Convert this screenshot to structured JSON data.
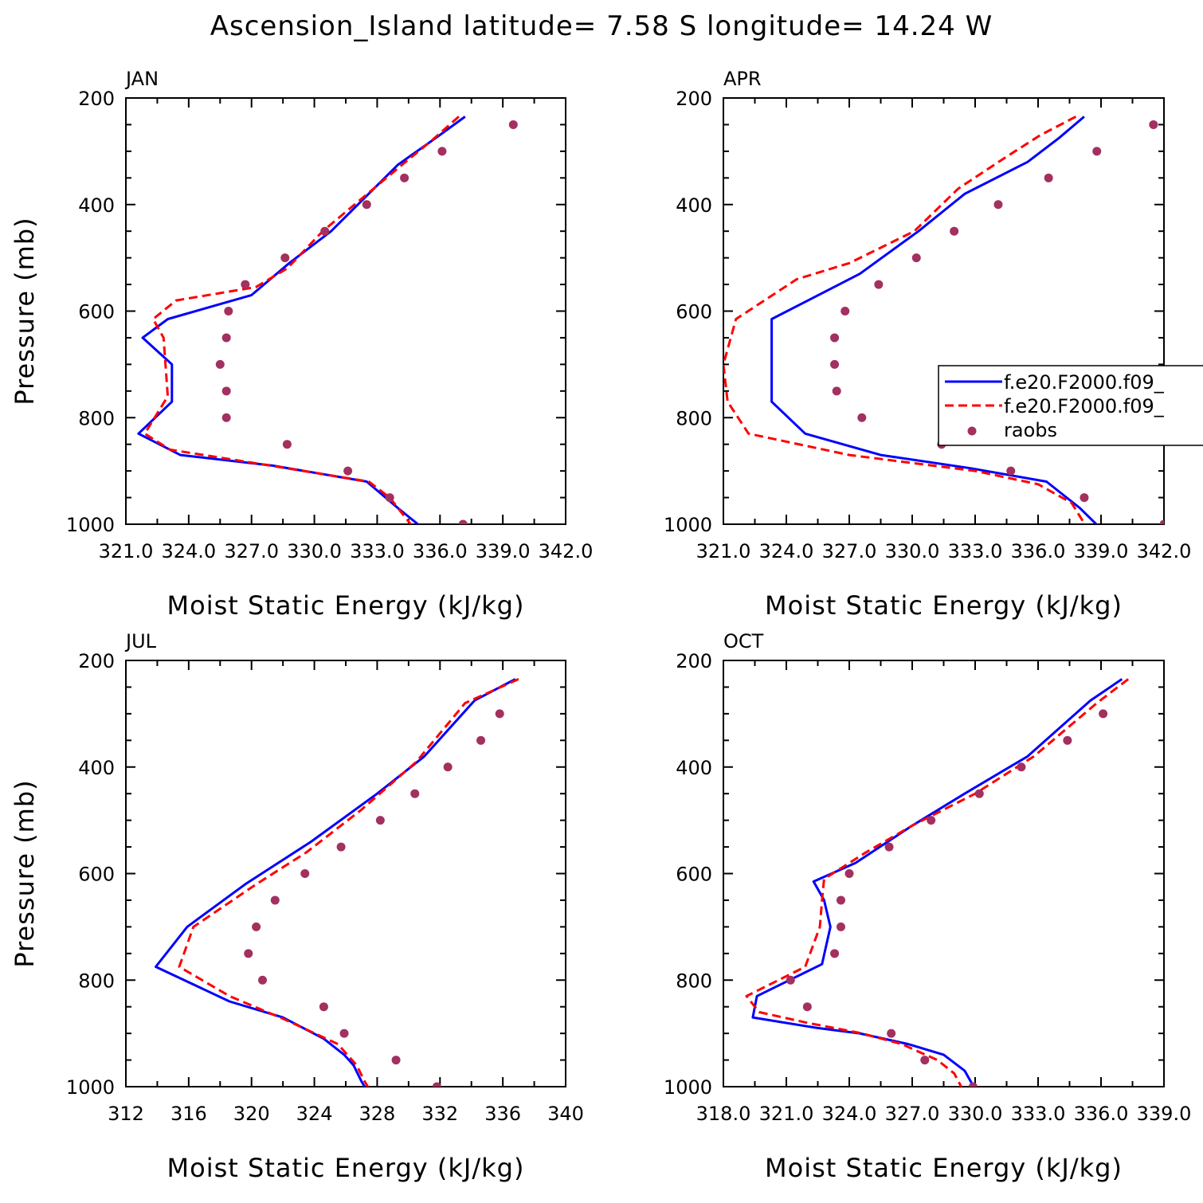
{
  "title": "Ascension_Island  latitude= 7.58 S longitude= 14.24 W",
  "colors": {
    "model1": "#0000ff",
    "model2": "#ff0000",
    "raobs": "#a3305f",
    "frame": "#000000"
  },
  "legend": {
    "placement": "inside APR panel, right side",
    "entries": [
      {
        "label": "f.e20.F2000.f09_",
        "style": "solid-line",
        "color": "#0000ff"
      },
      {
        "label": "f.e20.F2000.f09_",
        "style": "dashed-line",
        "color": "#ff0000"
      },
      {
        "label": "raobs",
        "style": "marker",
        "color": "#a3305f"
      }
    ]
  },
  "chart_data": [
    {
      "type": "line",
      "panel": "JAN",
      "xlabel": "Moist Static Energy (kJ/kg)",
      "ylabel": "Pressure (mb)",
      "xlim": [
        321,
        342
      ],
      "ylim": [
        200,
        1000
      ],
      "y_inverted": true,
      "xticks": [
        321,
        324,
        327,
        330,
        333,
        336,
        339,
        342
      ],
      "xticklabels": [
        "321.0",
        "324.0",
        "327.0",
        "330.0",
        "333.0",
        "336.0",
        "339.0",
        "342.0"
      ],
      "yticks": [
        200,
        400,
        600,
        800,
        1000
      ],
      "yticklabels": [
        "200",
        "400",
        "600",
        "800",
        "1000"
      ],
      "series": [
        {
          "style": "solid",
          "color": "#0000ff",
          "x": [
            337.2,
            335.8,
            334.0,
            330.8,
            328.8,
            327.0,
            323.0,
            321.8,
            323.2,
            323.2,
            321.6,
            323.6,
            328.0,
            332.5,
            334.0,
            335.1
          ],
          "y": [
            235,
            275,
            325,
            450,
            510,
            570,
            615,
            650,
            700,
            770,
            830,
            870,
            890,
            920,
            970,
            1005
          ]
        },
        {
          "style": "dashed",
          "color": "#ff0000",
          "x": [
            336.9,
            335.6,
            334.2,
            330.4,
            328.7,
            327.2,
            323.4,
            322.3,
            322.8,
            323.0,
            321.9,
            323.1,
            327.9,
            332.6,
            333.6,
            334.7
          ],
          "y": [
            235,
            280,
            325,
            450,
            520,
            555,
            580,
            615,
            650,
            760,
            830,
            860,
            890,
            920,
            950,
            1005
          ]
        },
        {
          "style": "marker",
          "color": "#a3305f",
          "x": [
            339.5,
            336.1,
            334.3,
            332.5,
            330.5,
            328.6,
            326.7,
            325.9,
            325.8,
            325.5,
            325.8,
            325.8,
            328.7,
            331.6,
            333.6,
            337.1
          ],
          "y": [
            250,
            300,
            350,
            400,
            450,
            500,
            550,
            600,
            650,
            700,
            750,
            800,
            850,
            900,
            950,
            1000
          ]
        }
      ]
    },
    {
      "type": "line",
      "panel": "APR",
      "xlabel": "Moist Static Energy (kJ/kg)",
      "ylabel": "",
      "xlim": [
        321,
        342
      ],
      "ylim": [
        200,
        1000
      ],
      "y_inverted": true,
      "xticks": [
        321,
        324,
        327,
        330,
        333,
        336,
        339,
        342
      ],
      "xticklabels": [
        "321.0",
        "324.0",
        "327.0",
        "330.0",
        "333.0",
        "336.0",
        "339.0",
        "342.0"
      ],
      "yticks": [
        200,
        400,
        600,
        800,
        1000
      ],
      "yticklabels": [
        "200",
        "400",
        "600",
        "800",
        "1000"
      ],
      "series": [
        {
          "style": "solid",
          "color": "#0000ff",
          "x": [
            338.2,
            337.0,
            335.5,
            332.5,
            330.3,
            327.5,
            323.3,
            323.3,
            323.3,
            324.9,
            328.5,
            332.8,
            336.4,
            338.0,
            338.9
          ],
          "y": [
            235,
            275,
            320,
            380,
            450,
            530,
            615,
            700,
            770,
            830,
            870,
            895,
            920,
            970,
            1005
          ]
        },
        {
          "style": "dashed",
          "color": "#ff0000",
          "x": [
            337.8,
            336.1,
            334.5,
            332.2,
            330.1,
            327.0,
            324.5,
            321.6,
            321.0,
            321.2,
            322.2,
            327.0,
            333.0,
            336.0,
            337.6,
            338.3
          ],
          "y": [
            235,
            270,
            310,
            370,
            450,
            510,
            540,
            615,
            700,
            770,
            830,
            870,
            900,
            925,
            960,
            1005
          ]
        },
        {
          "style": "marker",
          "color": "#a3305f",
          "x": [
            341.5,
            338.8,
            336.5,
            334.1,
            332.0,
            330.2,
            328.4,
            326.8,
            326.3,
            326.3,
            326.4,
            327.6,
            331.4,
            334.7,
            338.2,
            342.0
          ],
          "y": [
            250,
            300,
            350,
            400,
            450,
            500,
            550,
            600,
            650,
            700,
            750,
            800,
            850,
            900,
            950,
            1000
          ]
        }
      ]
    },
    {
      "type": "line",
      "panel": "JUL",
      "xlabel": "Moist Static Energy (kJ/kg)",
      "ylabel": "Pressure (mb)",
      "xlim": [
        312,
        340
      ],
      "ylim": [
        200,
        1000
      ],
      "y_inverted": true,
      "xticks": [
        312,
        316,
        320,
        324,
        328,
        332,
        336,
        340
      ],
      "xticklabels": [
        "312",
        "316",
        "320",
        "324",
        "328",
        "332",
        "336",
        "340"
      ],
      "yticks": [
        200,
        400,
        600,
        800,
        1000
      ],
      "yticklabels": [
        "200",
        "400",
        "600",
        "800",
        "1000"
      ],
      "series": [
        {
          "style": "solid",
          "color": "#0000ff",
          "x": [
            336.8,
            334.2,
            331.0,
            328.0,
            323.8,
            319.6,
            315.9,
            313.9,
            318.6,
            322.0,
            324.6,
            325.9,
            326.5,
            327.0,
            327.3
          ],
          "y": [
            235,
            275,
            380,
            450,
            540,
            620,
            700,
            775,
            840,
            870,
            910,
            940,
            960,
            990,
            1005
          ]
        },
        {
          "style": "dashed",
          "color": "#ff0000",
          "x": [
            337.0,
            333.6,
            330.5,
            327.0,
            323.5,
            320.3,
            316.3,
            315.4,
            318.6,
            322.2,
            325.5,
            326.7,
            327.2,
            327.5
          ],
          "y": [
            235,
            280,
            390,
            480,
            560,
            620,
            700,
            775,
            830,
            875,
            920,
            960,
            990,
            1005
          ]
        },
        {
          "style": "marker",
          "color": "#a3305f",
          "x": [
            335.8,
            334.6,
            332.5,
            330.4,
            328.2,
            325.7,
            323.4,
            321.5,
            320.3,
            319.8,
            320.7,
            324.6,
            325.9,
            329.2,
            331.8
          ],
          "y": [
            300,
            350,
            400,
            450,
            500,
            550,
            600,
            650,
            700,
            750,
            800,
            850,
            900,
            950,
            1000
          ]
        }
      ]
    },
    {
      "type": "line",
      "panel": "OCT",
      "xlabel": "Moist Static Energy (kJ/kg)",
      "ylabel": "",
      "xlim": [
        318,
        339
      ],
      "ylim": [
        200,
        1000
      ],
      "y_inverted": true,
      "xticks": [
        318,
        321,
        324,
        327,
        330,
        333,
        336,
        339
      ],
      "xticklabels": [
        "318.0",
        "321.0",
        "324.0",
        "327.0",
        "330.0",
        "333.0",
        "336.0",
        "339.0"
      ],
      "yticks": [
        200,
        400,
        600,
        800,
        1000
      ],
      "yticklabels": [
        "200",
        "400",
        "600",
        "800",
        "1000"
      ],
      "series": [
        {
          "style": "solid",
          "color": "#0000ff",
          "x": [
            337.0,
            335.5,
            332.5,
            329.5,
            327.0,
            324.3,
            322.3,
            322.8,
            323.1,
            322.7,
            319.6,
            319.4,
            322.5,
            324.5,
            326.8,
            328.5,
            329.5,
            330.0
          ],
          "y": [
            235,
            275,
            380,
            450,
            510,
            580,
            615,
            650,
            700,
            770,
            830,
            870,
            890,
            900,
            920,
            940,
            970,
            1005
          ]
        },
        {
          "style": "dashed",
          "color": "#ff0000",
          "x": [
            337.3,
            335.8,
            332.8,
            330.0,
            327.0,
            324.8,
            322.8,
            322.7,
            322.6,
            321.9,
            319.1,
            319.7,
            322.0,
            324.6,
            326.5,
            328.2,
            329.0,
            329.4
          ],
          "y": [
            235,
            280,
            380,
            450,
            510,
            560,
            610,
            650,
            700,
            775,
            830,
            860,
            880,
            900,
            920,
            950,
            975,
            1005
          ]
        },
        {
          "style": "marker",
          "color": "#a3305f",
          "x": [
            336.1,
            334.4,
            332.2,
            330.2,
            327.9,
            325.9,
            324.0,
            323.6,
            323.6,
            323.3,
            321.2,
            322.0,
            326.0,
            327.6,
            329.9
          ],
          "y": [
            300,
            350,
            400,
            450,
            500,
            550,
            600,
            650,
            700,
            750,
            800,
            850,
            900,
            950,
            1000
          ]
        }
      ]
    }
  ]
}
